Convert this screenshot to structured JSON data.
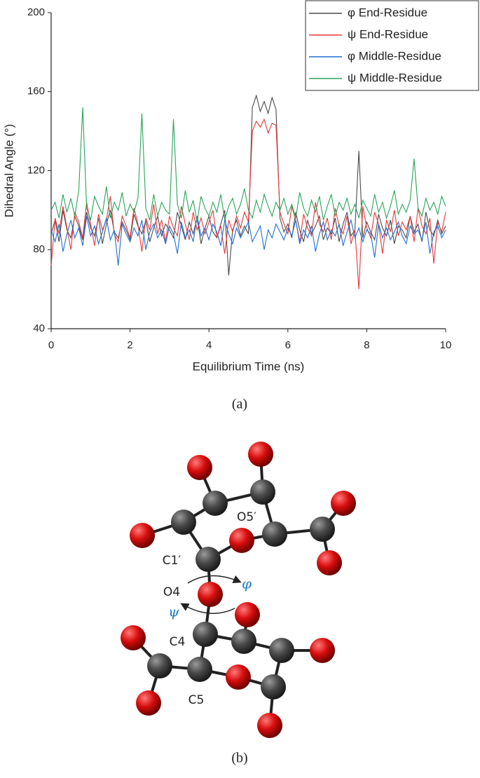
{
  "chart_data": {
    "type": "line",
    "x_label": "Equilibrium Time (ns)",
    "y_label": "Dihedral Angle (°)",
    "x": [
      0,
      0.1,
      0.2,
      0.3,
      0.4,
      0.5,
      0.6,
      0.7,
      0.8,
      0.9,
      1,
      1.1,
      1.2,
      1.3,
      1.4,
      1.5,
      1.6,
      1.7,
      1.8,
      1.9,
      2,
      2.1,
      2.2,
      2.3,
      2.4,
      2.5,
      2.6,
      2.7,
      2.8,
      2.9,
      3,
      3.1,
      3.2,
      3.3,
      3.4,
      3.5,
      3.6,
      3.7,
      3.8,
      3.9,
      4,
      4.1,
      4.2,
      4.3,
      4.4,
      4.5,
      4.6,
      4.7,
      4.8,
      4.9,
      5,
      5.1,
      5.2,
      5.3,
      5.4,
      5.5,
      5.6,
      5.7,
      5.8,
      5.9,
      6,
      6.1,
      6.2,
      6.3,
      6.4,
      6.5,
      6.6,
      6.7,
      6.8,
      6.9,
      7,
      7.1,
      7.2,
      7.3,
      7.4,
      7.5,
      7.6,
      7.7,
      7.8,
      7.9,
      8,
      8.1,
      8.2,
      8.3,
      8.4,
      8.5,
      8.6,
      8.7,
      8.8,
      8.9,
      9,
      9.1,
      9.2,
      9.3,
      9.4,
      9.5,
      9.6,
      9.7,
      9.8,
      9.9,
      10
    ],
    "series": [
      {
        "name": "φ End-Residue",
        "color": "#4a4a4a",
        "values": [
          88,
          95,
          84,
          100,
          90,
          86,
          97,
          92,
          85,
          99,
          91,
          87,
          96,
          83,
          93,
          100,
          89,
          86,
          94,
          90,
          85,
          98,
          92,
          88,
          95,
          84,
          91,
          97,
          87,
          93,
          90,
          86,
          99,
          92,
          85,
          94,
          88,
          96,
          83,
          91,
          97,
          89,
          86,
          93,
          100,
          67,
          90,
          95,
          87,
          92,
          88,
          152,
          158,
          150,
          155,
          149,
          157,
          151,
          96,
          89,
          93,
          86,
          99,
          90,
          84,
          95,
          88,
          92,
          97,
          85,
          91,
          88,
          96,
          84,
          93,
          99,
          87,
          90,
          130,
          86,
          94,
          89,
          85,
          98,
          91,
          87,
          95,
          83,
          92,
          90,
          86,
          97,
          89,
          93,
          84,
          99,
          90,
          87,
          95,
          88,
          92
        ]
      },
      {
        "name": "ψ End-Residue",
        "color": "#e8383b",
        "values": [
          72,
          96,
          88,
          102,
          91,
          80,
          99,
          94,
          86,
          104,
          93,
          82,
          98,
          90,
          95,
          107,
          88,
          84,
          97,
          92,
          86,
          101,
          93,
          79,
          96,
          90,
          103,
          88,
          95,
          84,
          97,
          91,
          87,
          102,
          93,
          85,
          99,
          90,
          96,
          88,
          94,
          100,
          86,
          92,
          78,
          95,
          89,
          97,
          91,
          99,
          94,
          140,
          145,
          142,
          146,
          139,
          144,
          143,
          99,
          93,
          88,
          102,
          95,
          84,
          98,
          91,
          87,
          104,
          93,
          89,
          96,
          85,
          101,
          92,
          88,
          97,
          83,
          90,
          60,
          102,
          91,
          86,
          99,
          93,
          78,
          95,
          89,
          100,
          87,
          94,
          90,
          97,
          84,
          101,
          92,
          88,
          96,
          73,
          94,
          89,
          99
        ]
      },
      {
        "name": "φ Middle-Residue",
        "color": "#1f6fd6",
        "values": [
          90,
          84,
          93,
          79,
          88,
          95,
          86,
          91,
          82,
          97,
          87,
          92,
          83,
          89,
          96,
          85,
          90,
          72,
          93,
          88,
          84,
          91,
          87,
          95,
          80,
          89,
          93,
          86,
          90,
          83,
          92,
          88,
          78,
          94,
          86,
          90,
          84,
          97,
          87,
          91,
          85,
          93,
          89,
          82,
          95,
          88,
          83,
          91,
          86,
          90,
          94,
          84,
          88,
          92,
          80,
          90,
          86,
          93,
          89,
          85,
          91,
          87,
          95,
          83,
          90,
          86,
          92,
          79,
          88,
          94,
          85,
          90,
          87,
          93,
          82,
          89,
          95,
          86,
          91,
          84,
          90,
          88,
          76,
          93,
          86,
          91,
          85,
          89,
          94,
          87,
          83,
          92,
          88,
          90,
          85,
          94,
          78,
          89,
          92,
          86,
          90
        ]
      },
      {
        "name": "ψ Middle-Residue",
        "color": "#2aa35a",
        "values": [
          100,
          104,
          96,
          108,
          99,
          106,
          97,
          110,
          152,
          101,
          95,
          107,
          102,
          98,
          112,
          96,
          104,
          100,
          109,
          97,
          103,
          99,
          106,
          149,
          101,
          95,
          108,
          97,
          104,
          100,
          98,
          146,
          103,
          96,
          110,
          99,
          105,
          94,
          107,
          101,
          97,
          104,
          99,
          108,
          95,
          102,
          106,
          98,
          103,
          111,
          100,
          96,
          105,
          99,
          108,
          102,
          97,
          104,
          100,
          106,
          98,
          103,
          96,
          109,
          101,
          97,
          105,
          99,
          107,
          95,
          102,
          108,
          97,
          104,
          100,
          106,
          98,
          103,
          96,
          105,
          101,
          97,
          108,
          99,
          104,
          96,
          102,
          110,
          98,
          103,
          99,
          105,
          126,
          101,
          97,
          106,
          100,
          104,
          98,
          107,
          102
        ]
      }
    ],
    "xlim": [
      0,
      10
    ],
    "xticks": [
      0,
      2,
      4,
      6,
      8,
      10
    ],
    "ylim": [
      40,
      200
    ],
    "yticks": [
      40,
      80,
      120,
      160,
      200
    ],
    "legend": "upper right"
  },
  "captions": [
    "(a)",
    "(b)"
  ],
  "diagram": {
    "labels": [
      "O5′",
      "C1′",
      "φ",
      "O4",
      "ψ",
      "C4",
      "C5"
    ]
  }
}
